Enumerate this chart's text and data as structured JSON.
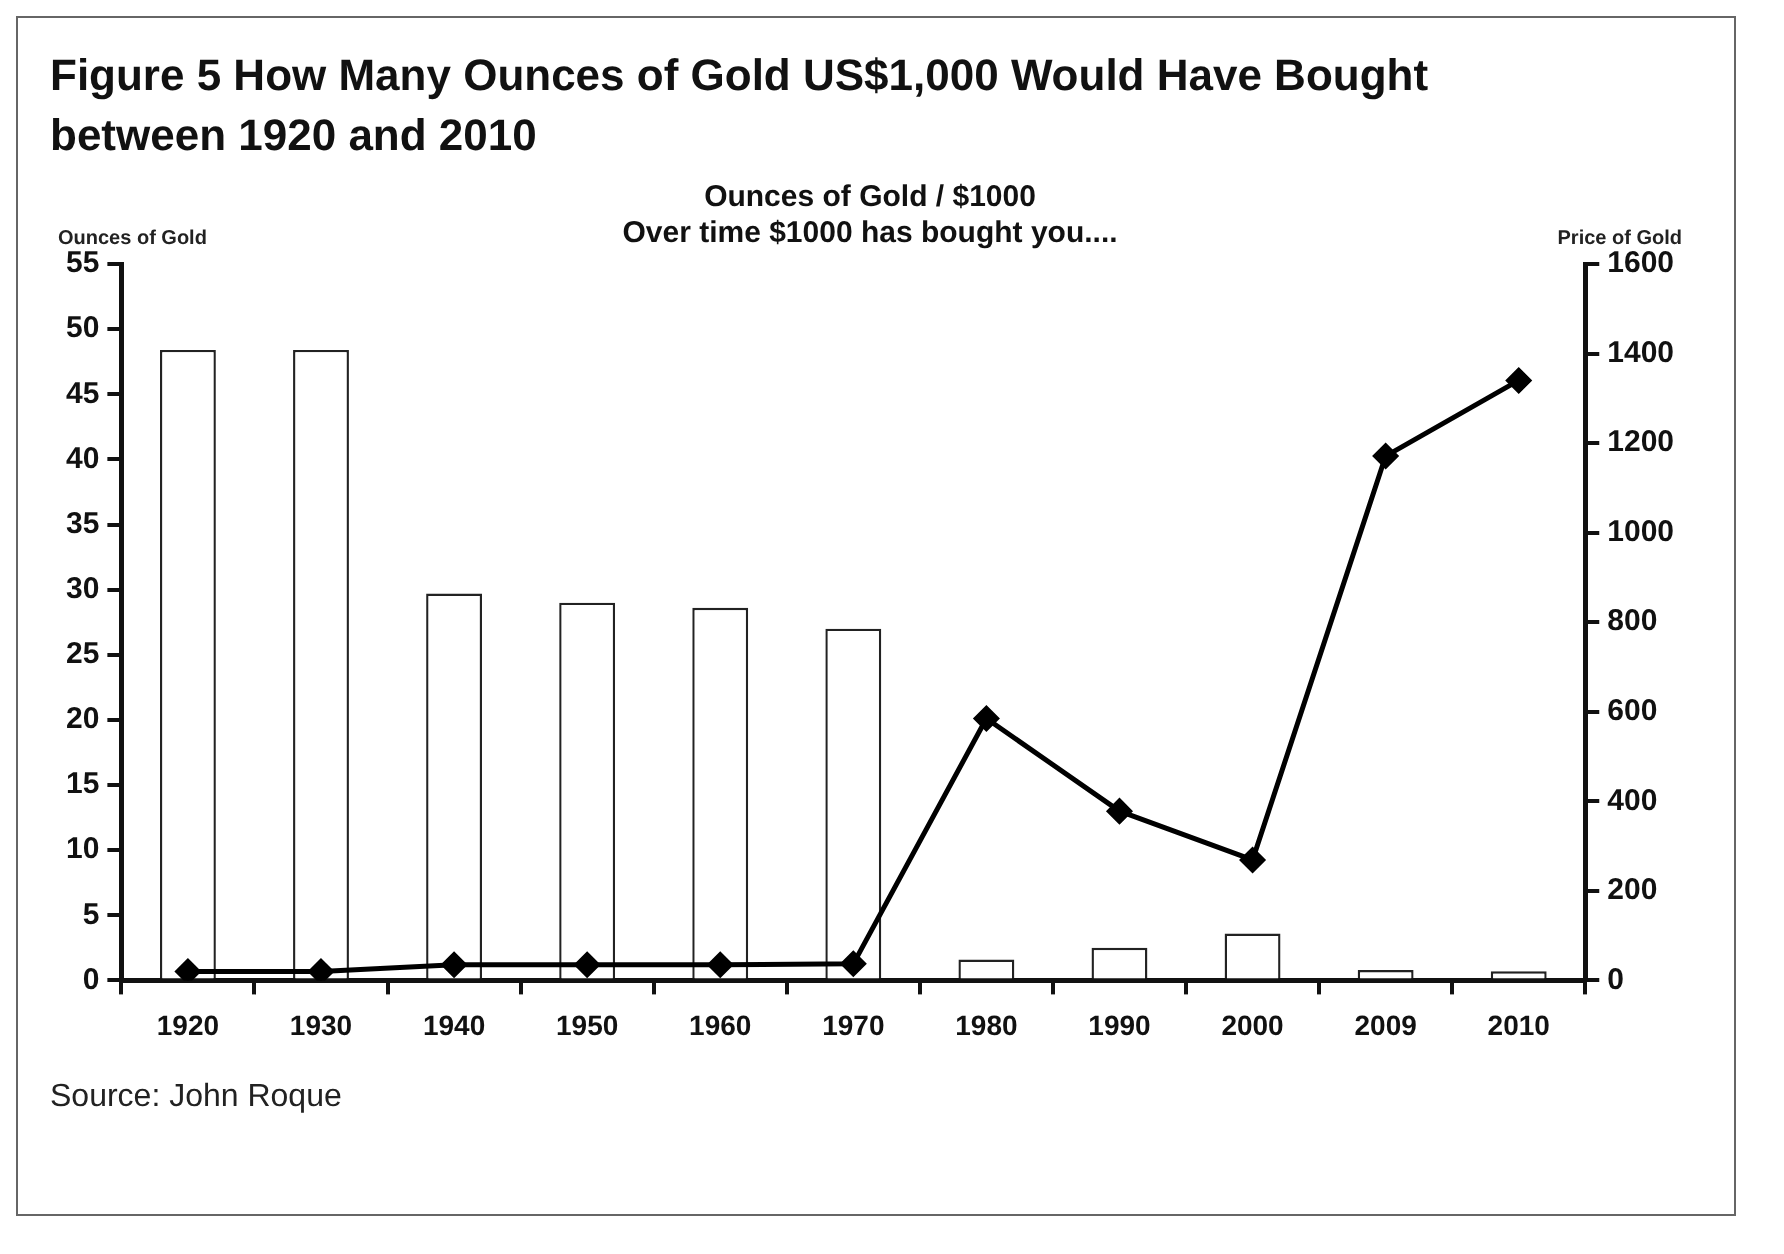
{
  "chart_data": {
    "type": "bar",
    "title": "Figure 5  How Many Ounces of Gold US$1,000 Would Have Bought between 1920 and 2010",
    "subtitle": "Ounces of Gold / $1000\nOver time $1000 has bought you....",
    "ylabel": "Ounces of Gold",
    "y2label": "Price of Gold",
    "categories": [
      "1920",
      "1930",
      "1940",
      "1950",
      "1960",
      "1970",
      "1980",
      "1990",
      "2000",
      "2009",
      "2010"
    ],
    "series": [
      {
        "color": "#ffffff",
        "values": [
          48.4,
          48.4,
          29.7,
          29.0,
          28.6,
          27.0,
          1.6,
          2.5,
          3.6,
          0.8,
          0.7
        ]
      },
      {
        "type": "line",
        "axis": "y2",
        "color": "#000000",
        "marker": "diamond",
        "values": [
          20,
          20,
          35,
          35,
          35,
          37,
          585,
          378,
          269,
          1171,
          1340
        ]
      }
    ],
    "ylim": [
      0,
      55
    ],
    "yticks": [
      0,
      5,
      10,
      15,
      20,
      25,
      30,
      35,
      40,
      45,
      50,
      55
    ],
    "y2lim": [
      0,
      1600
    ],
    "y2ticks": [
      0,
      200,
      400,
      600,
      800,
      1000,
      1200,
      1400,
      1600
    ],
    "grid": false,
    "legend": false,
    "annotations": [
      "Source: John Roque"
    ]
  }
}
